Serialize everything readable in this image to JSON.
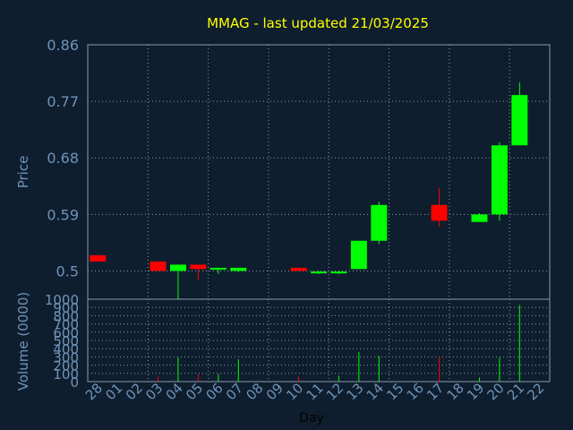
{
  "title": "MMAG - last updated 21/03/2025",
  "colors": {
    "background": "#0f1e2e",
    "plot_background": "#0f1e2e",
    "title": "#ffff00",
    "axis_text": "#6f93b8",
    "grid": "#8899aa",
    "up": "#00ff00",
    "down": "#ff0000"
  },
  "chart_data": [
    {
      "type": "candlestick",
      "ylabel": "Price",
      "ylim": [
        0.455,
        0.86
      ],
      "yticks": [
        0.5,
        0.59,
        0.68,
        0.77,
        0.86
      ],
      "ytick_labels": [
        "0.5",
        "0.59",
        "0.68",
        "0.77",
        "0.86"
      ],
      "categories": [
        "28",
        "01",
        "02",
        "03",
        "04",
        "05",
        "06",
        "07",
        "08",
        "09",
        "10",
        "11",
        "12",
        "13",
        "14",
        "15",
        "16",
        "17",
        "18",
        "19",
        "20",
        "21",
        "22"
      ],
      "grid": true,
      "candles": [
        {
          "day": "28",
          "open": 0.525,
          "close": 0.515,
          "high": 0.525,
          "low": 0.515
        },
        {
          "day": "03",
          "open": 0.515,
          "close": 0.5,
          "high": 0.515,
          "low": 0.5
        },
        {
          "day": "04",
          "open": 0.5,
          "close": 0.51,
          "high": 0.51,
          "low": 0.455
        },
        {
          "day": "05",
          "open": 0.51,
          "close": 0.503,
          "high": 0.51,
          "low": 0.485
        },
        {
          "day": "06",
          "open": 0.502,
          "close": 0.505,
          "high": 0.505,
          "low": 0.495
        },
        {
          "day": "07",
          "open": 0.5,
          "close": 0.505,
          "high": 0.505,
          "low": 0.498
        },
        {
          "day": "10",
          "open": 0.505,
          "close": 0.5,
          "high": 0.505,
          "low": 0.5
        },
        {
          "day": "11",
          "open": 0.497,
          "close": 0.499,
          "high": 0.5,
          "low": 0.495
        },
        {
          "day": "12",
          "open": 0.497,
          "close": 0.499,
          "high": 0.5,
          "low": 0.495
        },
        {
          "day": "13",
          "open": 0.503,
          "close": 0.548,
          "high": 0.548,
          "low": 0.503
        },
        {
          "day": "14",
          "open": 0.548,
          "close": 0.605,
          "high": 0.61,
          "low": 0.543
        },
        {
          "day": "17",
          "open": 0.605,
          "close": 0.58,
          "high": 0.632,
          "low": 0.57
        },
        {
          "day": "19",
          "open": 0.578,
          "close": 0.59,
          "high": 0.592,
          "low": 0.578
        },
        {
          "day": "20",
          "open": 0.59,
          "close": 0.7,
          "high": 0.705,
          "low": 0.58
        },
        {
          "day": "21",
          "open": 0.7,
          "close": 0.78,
          "high": 0.8,
          "low": 0.7
        }
      ]
    },
    {
      "type": "bar",
      "xlabel": "Day",
      "ylabel": "Volume (0000)",
      "ylim": [
        0,
        1000
      ],
      "yticks": [
        0,
        100,
        200,
        300,
        400,
        500,
        600,
        700,
        800,
        900,
        1000
      ],
      "ytick_labels": [
        "0",
        "100",
        "200",
        "300",
        "400",
        "500",
        "600",
        "700",
        "800",
        "900",
        "1000"
      ],
      "grid": true,
      "bars": [
        {
          "day": "03",
          "value": 60,
          "color": "down"
        },
        {
          "day": "04",
          "value": 290,
          "color": "up"
        },
        {
          "day": "05",
          "value": 90,
          "color": "down"
        },
        {
          "day": "06",
          "value": 90,
          "color": "up"
        },
        {
          "day": "07",
          "value": 270,
          "color": "up"
        },
        {
          "day": "10",
          "value": 60,
          "color": "down"
        },
        {
          "day": "12",
          "value": 70,
          "color": "up"
        },
        {
          "day": "13",
          "value": 360,
          "color": "up"
        },
        {
          "day": "14",
          "value": 310,
          "color": "up"
        },
        {
          "day": "17",
          "value": 300,
          "color": "down"
        },
        {
          "day": "19",
          "value": 50,
          "color": "up"
        },
        {
          "day": "20",
          "value": 290,
          "color": "up"
        },
        {
          "day": "21",
          "value": 930,
          "color": "up"
        }
      ]
    }
  ]
}
